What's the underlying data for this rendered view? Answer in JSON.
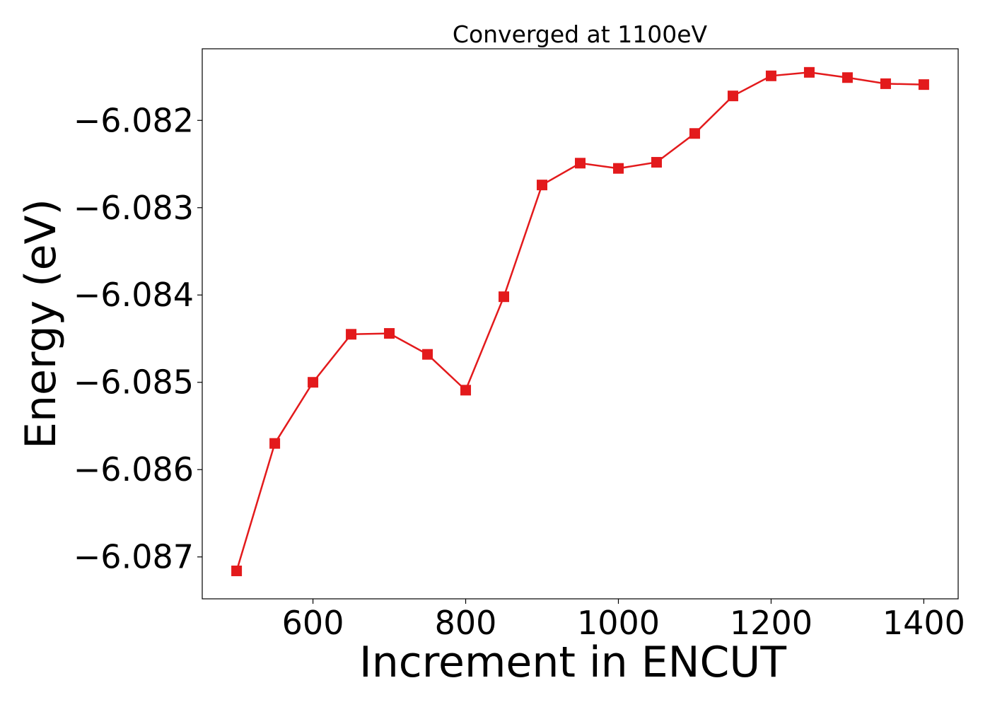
{
  "chart_data": {
    "type": "line",
    "title": "Converged at 1100eV",
    "xlabel": "Increment in ENCUT",
    "ylabel": "Energy (eV)",
    "xlim": [
      455,
      1445
    ],
    "ylim": [
      -6.08748,
      -6.08118
    ],
    "xticks": [
      600,
      800,
      1000,
      1200,
      1400
    ],
    "yticks": [
      -6.082,
      -6.083,
      -6.084,
      -6.085,
      -6.086,
      -6.087
    ],
    "ytick_labels": [
      "−6.082",
      "−6.083",
      "−6.084",
      "−6.085",
      "−6.086",
      "−6.087"
    ],
    "grid": false,
    "marker": "square",
    "color": "#e31a1c",
    "series": [
      {
        "x": [
          500,
          550,
          600,
          650,
          700,
          750,
          800,
          850,
          900,
          950,
          1000,
          1050,
          1100,
          1150,
          1200,
          1250,
          1300,
          1350,
          1400
        ],
        "y": [
          -6.08716,
          -6.0857,
          -6.085,
          -6.08445,
          -6.08444,
          -6.08468,
          -6.08509,
          -6.08402,
          -6.08274,
          -6.08249,
          -6.08255,
          -6.08248,
          -6.08215,
          -6.08172,
          -6.08149,
          -6.08145,
          -6.08151,
          -6.08158,
          -6.08159
        ]
      }
    ]
  }
}
